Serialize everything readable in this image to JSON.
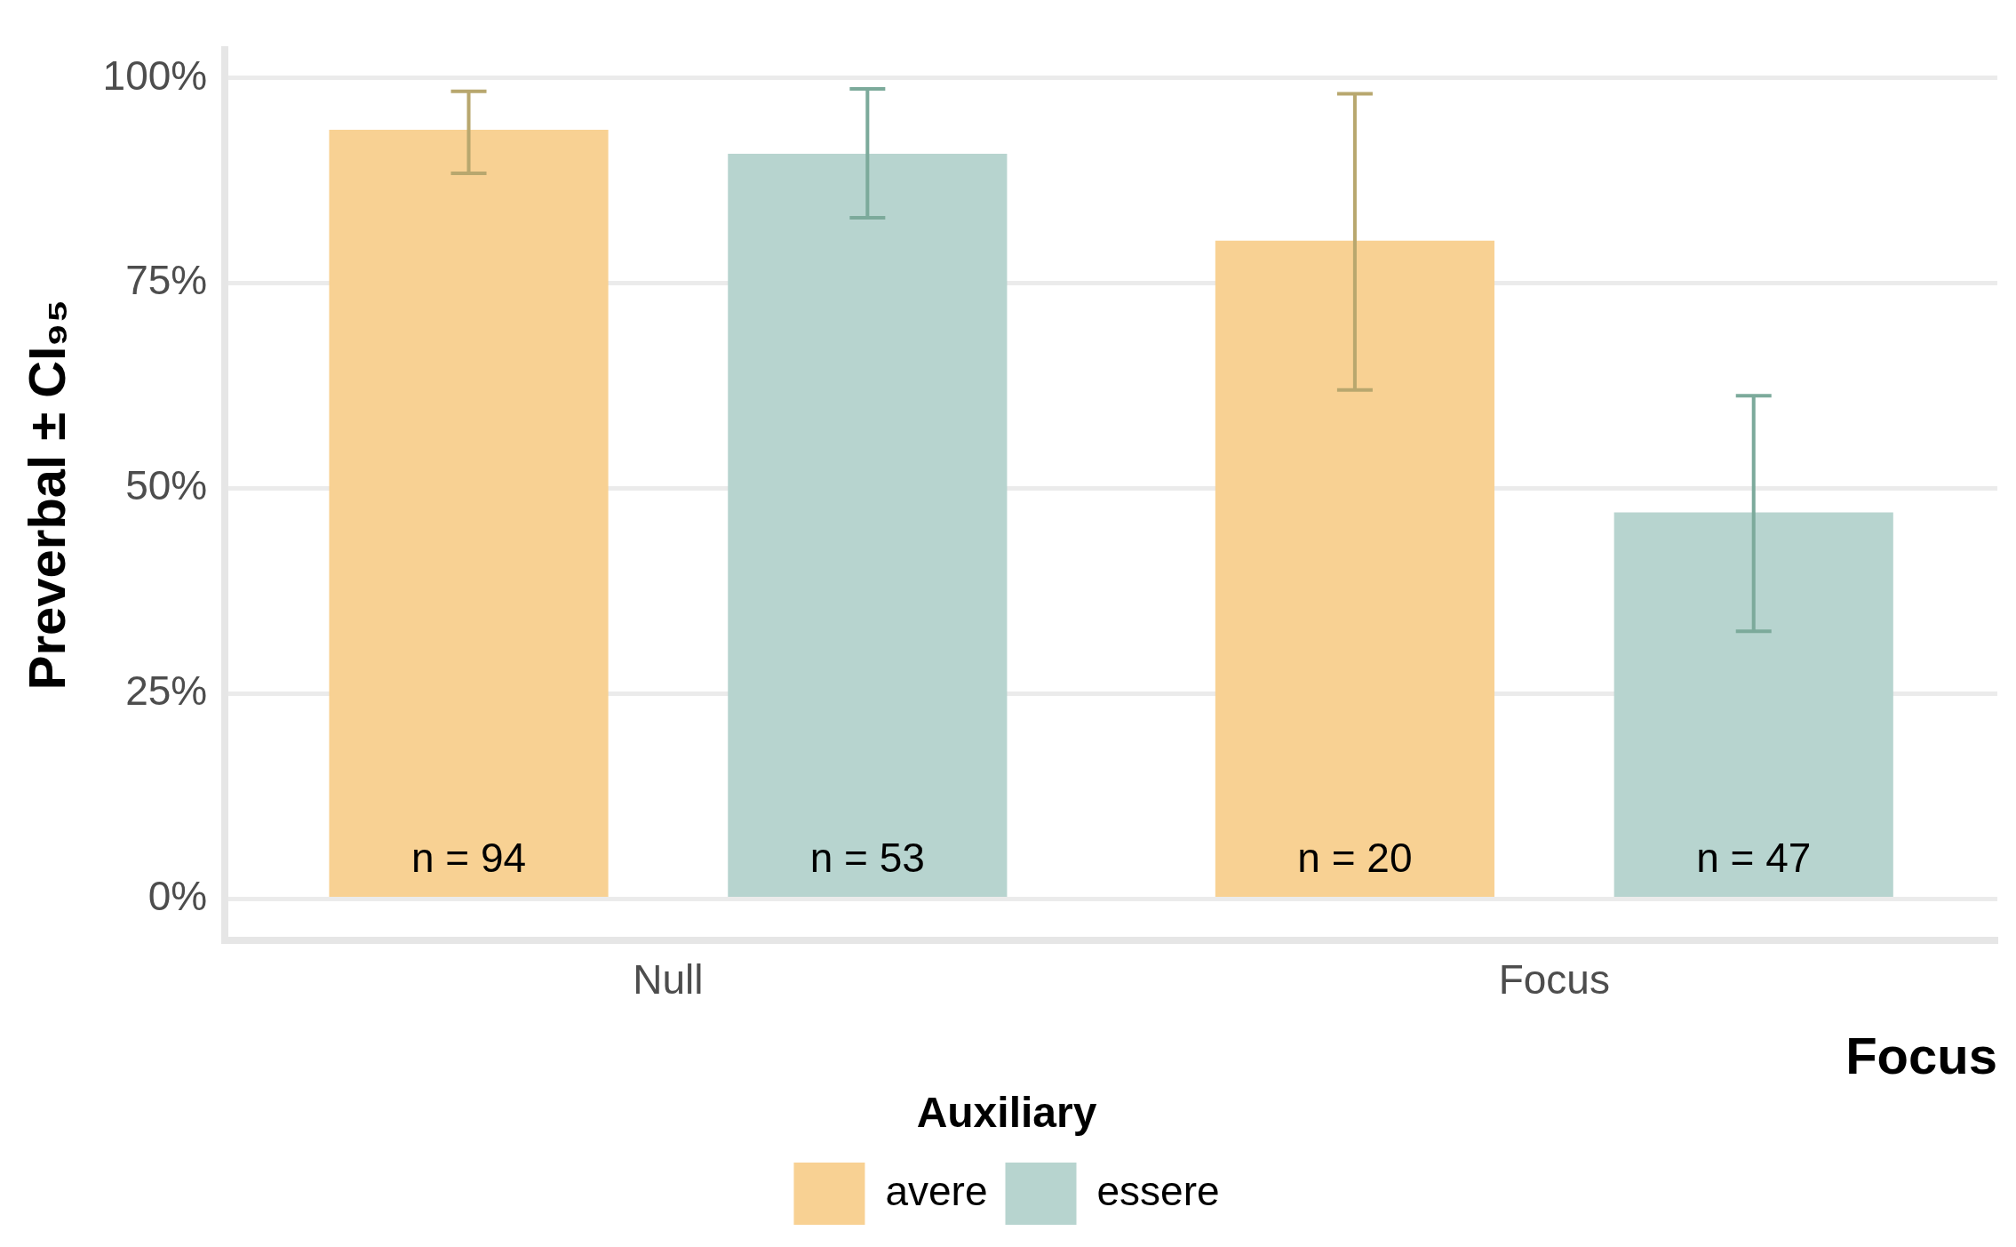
{
  "chart_data": {
    "type": "bar",
    "xlabel": "Focus",
    "ylabel": "Preverbal ± CI₉₅",
    "legend_title": "Auxiliary",
    "categories": [
      "Null",
      "Focus"
    ],
    "series": [
      {
        "name": "avere",
        "color": "#f8d193",
        "values": [
          93.7,
          80.2
        ],
        "errors": [
          [
            88.4,
            98.4
          ],
          [
            62.0,
            98.1
          ]
        ]
      },
      {
        "name": "essere",
        "color": "#b7d4cf",
        "values": [
          90.8,
          47.1
        ],
        "errors": [
          [
            83.0,
            98.7
          ],
          [
            32.6,
            61.3
          ]
        ]
      }
    ],
    "annotations": [
      "n = 94",
      "n = 53",
      "n = 20",
      "n = 47"
    ],
    "ylim": [
      -5,
      103.5
    ],
    "yticks": [
      {
        "value": 0,
        "label": "0%"
      },
      {
        "value": 25,
        "label": "25%"
      },
      {
        "value": 50,
        "label": "50%"
      },
      {
        "value": 75,
        "label": "75%"
      },
      {
        "value": 100,
        "label": "100%"
      }
    ],
    "grid": "y",
    "legend": "bottom"
  }
}
